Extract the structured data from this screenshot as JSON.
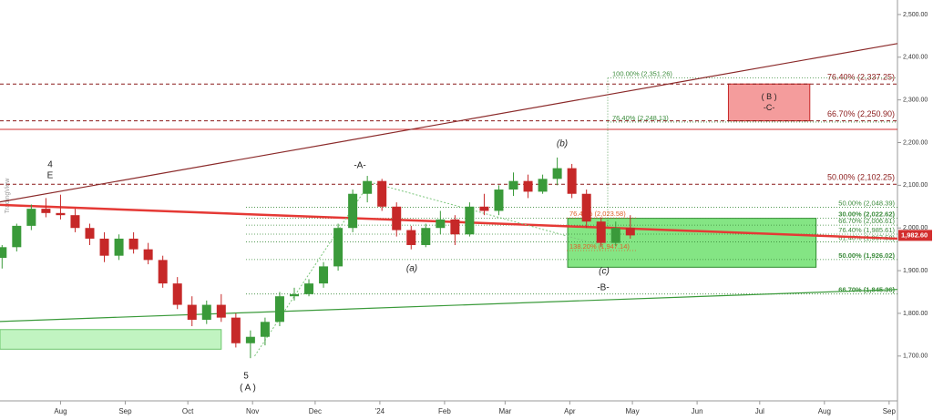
{
  "watermark": "TradingView",
  "chart_data": {
    "type": "candlestick",
    "x": [
      3,
      10,
      17,
      24,
      31,
      38,
      45,
      52,
      59,
      66,
      73,
      80,
      87,
      94,
      101,
      108,
      115,
      122,
      129,
      136,
      143,
      150,
      157,
      164,
      171,
      178,
      185,
      192,
      199,
      206,
      213,
      220,
      227,
      234,
      241,
      248,
      255,
      262,
      269,
      276,
      283,
      290,
      297,
      304
    ],
    "open": [
      1930,
      1955,
      2005,
      2045,
      2035,
      2030,
      2000,
      1975,
      1935,
      1975,
      1950,
      1925,
      1870,
      1820,
      1785,
      1820,
      1790,
      1730,
      1745,
      1780,
      1840,
      1845,
      1870,
      1910,
      2000,
      2080,
      2110,
      2050,
      1995,
      1960,
      2000,
      2020,
      1985,
      2050,
      2040,
      2090,
      2110,
      2085,
      2115,
      2140,
      2080,
      2015,
      1965,
      2000
    ],
    "high": [
      1960,
      2010,
      2055,
      2070,
      2078,
      2045,
      2010,
      1990,
      1985,
      1990,
      1965,
      1935,
      1885,
      1840,
      1830,
      1845,
      1800,
      1760,
      1790,
      1850,
      1860,
      1880,
      1920,
      2010,
      2090,
      2122,
      2115,
      2060,
      2005,
      2010,
      2040,
      2030,
      2060,
      2080,
      2100,
      2130,
      2125,
      2125,
      2165,
      2150,
      2090,
      2025,
      2015,
      2030
    ],
    "low": [
      1905,
      1945,
      1995,
      2025,
      2020,
      1990,
      1960,
      1920,
      1925,
      1940,
      1915,
      1860,
      1810,
      1770,
      1775,
      1780,
      1720,
      1695,
      1725,
      1770,
      1830,
      1840,
      1860,
      1900,
      1990,
      2060,
      2040,
      1980,
      1950,
      1955,
      1985,
      1960,
      1980,
      2030,
      2030,
      2075,
      2070,
      2080,
      2100,
      2070,
      2000,
      1955,
      1958,
      1975
    ],
    "close": [
      1955,
      2005,
      2045,
      2035,
      2030,
      2000,
      1975,
      1935,
      1975,
      1950,
      1925,
      1870,
      1820,
      1785,
      1820,
      1790,
      1730,
      1745,
      1780,
      1840,
      1845,
      1870,
      1910,
      2000,
      2080,
      2110,
      2050,
      1995,
      1960,
      2000,
      2020,
      1985,
      2050,
      2040,
      2090,
      2110,
      2085,
      2115,
      2140,
      2080,
      2015,
      1965,
      2000,
      1982.6
    ],
    "up_color": "#3a9a3a",
    "down_color": "#c62828",
    "xlim": [
      2,
      432
    ],
    "ylim": [
      1595,
      2534
    ],
    "xticks": [
      {
        "value": 31,
        "label": "Aug"
      },
      {
        "value": 62,
        "label": "Sep"
      },
      {
        "value": 92,
        "label": "Oct"
      },
      {
        "value": 123,
        "label": "Nov"
      },
      {
        "value": 153,
        "label": "Dec"
      },
      {
        "value": 184,
        "label": "'24"
      },
      {
        "value": 215,
        "label": "Feb"
      },
      {
        "value": 244,
        "label": "Mar"
      },
      {
        "value": 275,
        "label": "Apr"
      },
      {
        "value": 305,
        "label": "May"
      },
      {
        "value": 336,
        "label": "Jun"
      },
      {
        "value": 366,
        "label": "Jul"
      },
      {
        "value": 397,
        "label": "Aug"
      },
      {
        "value": 428,
        "label": "Sep"
      }
    ],
    "yticks": [
      {
        "value": 1700,
        "label": "1,700.00"
      },
      {
        "value": 1800,
        "label": "1,800.00"
      },
      {
        "value": 1900,
        "label": "1,900.00"
      },
      {
        "value": 2000,
        "label": "2,000.00"
      },
      {
        "value": 2100,
        "label": "2,100.00"
      },
      {
        "value": 2200,
        "label": "2,200.00"
      },
      {
        "value": 2300,
        "label": "2,300.00"
      },
      {
        "value": 2400,
        "label": "2,400.00"
      },
      {
        "value": 2500,
        "label": "2,500.00"
      }
    ],
    "last_price": {
      "value": 1982.6,
      "label": "1,982.60"
    },
    "levels": [
      {
        "value": 2337.25,
        "label": "76.40% (2,337.25)",
        "color": "#8b1a1a"
      },
      {
        "value": 2250.9,
        "label": "66.70% (2,250.90)",
        "color": "#8b1a1a"
      },
      {
        "value": 2102.25,
        "label": "50.00% (2,102.25)",
        "color": "#8b1a1a"
      }
    ],
    "hline": {
      "value": 2231,
      "color": "#d32f2f"
    },
    "fib_right": [
      {
        "value": 2048.39,
        "label": "50.00% (2,048.39)"
      },
      {
        "value": 2022.62,
        "label": "30.00% (2,022.62)"
      },
      {
        "value": 2006.61,
        "label": "66.70% (2,006.61)"
      },
      {
        "value": 1985.61,
        "label": "76.40% (1,985.61)"
      },
      {
        "value": 1967.58,
        "label": "61.40% (1,967.58)"
      },
      {
        "value": 1926.02,
        "label": "50.00% (1,926.02)"
      },
      {
        "value": 1845.36,
        "label": "66.70% (1,845.36)"
      }
    ],
    "fib_top": [
      {
        "value": 2351.26,
        "label": "100.00% (2,351.26)"
      },
      {
        "value": 2248.13,
        "label": "76.40% (2,248.13)"
      }
    ],
    "fib_orange": [
      {
        "value": 2023.58,
        "label": "76.40% (2,023.58)"
      },
      {
        "value": 1947.14,
        "label": "138.20% (1,947.14)"
      }
    ],
    "fib_color": "#3c8c3c",
    "orange_color": "#e0602a",
    "trendlines": [
      {
        "color": "#8b2a2a",
        "width": 1.2,
        "x": [
          2,
          432
        ],
        "y": [
          2061,
          2432
        ]
      },
      {
        "color": "#e53935",
        "width": 2.5,
        "x": [
          2,
          432
        ],
        "y": [
          2054,
          1975
        ]
      },
      {
        "color": "#3a9a3a",
        "width": 1.2,
        "x": [
          2,
          432
        ],
        "y": [
          1781,
          1856
        ]
      },
      {
        "color": "#7cc67c",
        "width": 1,
        "x": [
          124,
          179
        ],
        "y": [
          1700,
          2105
        ]
      },
      {
        "color": "#7cc67c",
        "width": 1,
        "x": [
          181,
          291
        ],
        "y": [
          2105,
          1958
        ]
      }
    ],
    "boxes": [
      {
        "fill": "#f28b8b",
        "stroke": "#c62828",
        "x": [
          351,
          390
        ],
        "y": [
          2337.25,
          2250.9
        ]
      },
      {
        "fill": "#6fe06f",
        "stroke": "#2e8b2e",
        "x": [
          274,
          393
        ],
        "y": [
          2022.62,
          1908
        ]
      },
      {
        "fill": "#b6f2b6",
        "stroke": "#6cc66c",
        "x": [
          2,
          108
        ],
        "y": [
          1762,
          1716
        ]
      }
    ],
    "box_labels": [
      "( B )",
      "-C-"
    ],
    "wave_labels": [
      "4",
      "E",
      "5",
      "( A )",
      "-A-",
      "(a)",
      "(b)",
      "(c)",
      "-B-"
    ]
  }
}
